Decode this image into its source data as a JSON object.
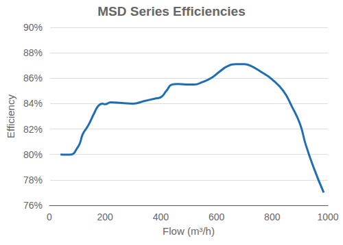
{
  "chart_data": {
    "type": "line",
    "title": "MSD Series Efficiencies",
    "x_label": "Flow (m³/h)",
    "y_label": "Efficiency",
    "series": [
      {
        "name": "MSD Series",
        "color": "#1f6db3",
        "x": [
          40,
          60,
          80,
          100,
          110,
          120,
          140,
          160,
          175,
          190,
          200,
          220,
          260,
          300,
          340,
          380,
          400,
          420,
          440,
          460,
          490,
          520,
          550,
          580,
          610,
          640,
          670,
          700,
          720,
          760,
          800,
          840,
          870,
          900,
          920,
          950,
          985
        ],
        "values": [
          80.0,
          79.98,
          80.0,
          80.5,
          80.9,
          81.6,
          82.3,
          83.2,
          83.8,
          84.0,
          83.95,
          84.1,
          84.05,
          84.0,
          84.2,
          84.4,
          84.5,
          85.0,
          85.5,
          85.55,
          85.5,
          85.5,
          85.7,
          86.0,
          86.5,
          86.95,
          87.1,
          87.1,
          87.0,
          86.5,
          85.9,
          85.0,
          83.8,
          82.4,
          80.8,
          78.9,
          77.0
        ]
      }
    ],
    "xlim": [
      0,
      1000
    ],
    "xticks": [
      0,
      200,
      400,
      600,
      800,
      1000
    ],
    "ylim": [
      76,
      90
    ],
    "yticks": [
      {
        "value": 76,
        "label": "76%"
      },
      {
        "value": 78,
        "label": "78%"
      },
      {
        "value": 80,
        "label": "80%"
      },
      {
        "value": 82,
        "label": "82%"
      },
      {
        "value": 84,
        "label": "84%"
      },
      {
        "value": 86,
        "label": "86%"
      },
      {
        "value": 88,
        "label": "88%"
      },
      {
        "value": 90,
        "label": "90%"
      }
    ],
    "grid": true
  }
}
